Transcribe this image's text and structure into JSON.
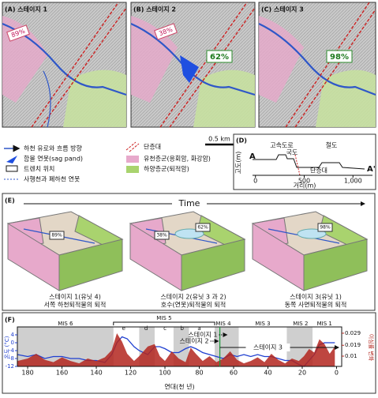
{
  "panels": {
    "a": {
      "label": "(A) 스테이지 1",
      "pct": "89%"
    },
    "b": {
      "label": "(B) 스테이지 2",
      "pct_west": "38%",
      "pct_east": "62%"
    },
    "c": {
      "label": "(C) 스테이지 3",
      "pct": "98%"
    }
  },
  "scale_bar": "0.5 km",
  "legend": {
    "left": [
      "하천 유로와 흐름 방향",
      "함몰 연못(sag pand)",
      "트렌치 위치",
      "사행천과 폐하천 연못"
    ],
    "right": [
      "단층대",
      "유천층군(응회암, 화강암)",
      "하양층군(퇴적암)"
    ]
  },
  "profile": {
    "label": "(D)",
    "y_label": "고도(m)",
    "start": "A",
    "end": "A'",
    "highway": "고속도로",
    "road": "국도",
    "railway": "철도",
    "fault": "단층대",
    "x_label": "거리(m)",
    "xlim": [
      -30,
      1200
    ],
    "xticks": [
      0,
      500,
      {
        "value": 1000,
        "label": "1,000"
      }
    ]
  },
  "evolution": {
    "label": "(E)",
    "time": "Time",
    "blocks": [
      {
        "pct": [
          "89%"
        ],
        "caption": [
          "스테이지 1(유닛 4)",
          "서쪽 하천퇴적물의 퇴적"
        ]
      },
      {
        "pct": [
          "38%",
          "62%"
        ],
        "caption": [
          "스테이지 2(유닛 3 과 2)",
          "호수(연못)퇴적물의 퇴적"
        ]
      },
      {
        "pct": [
          "98%"
        ],
        "caption": [
          "스테이지 3(유닛 1)",
          "동쪽 사면퇴적물의 퇴적"
        ]
      }
    ]
  },
  "chart_data": {
    "type": "line",
    "label": "(F)",
    "x_label": "연대(천 년)",
    "y_label": "온도 (°C)",
    "y2_label": "이심률 변화",
    "xlim": [
      186,
      -3
    ],
    "xticks": [
      180,
      160,
      140,
      120,
      100,
      80,
      60,
      40,
      20,
      0
    ],
    "ylim": [
      -12,
      8
    ],
    "yticks": [
      4,
      0,
      -4,
      -8,
      -12
    ],
    "y2lim": [
      0.0015,
      0.0342
    ],
    "y2ticks": [
      0.029,
      0.019,
      0.01
    ],
    "x": [
      186,
      180,
      175,
      170,
      165,
      160,
      155,
      150,
      145,
      140,
      135,
      131,
      128,
      125,
      122,
      118,
      115,
      110,
      106,
      103,
      100,
      96,
      92,
      88,
      85,
      82,
      78,
      74,
      70,
      66,
      62,
      58,
      54,
      50,
      46,
      42,
      38,
      34,
      30,
      26,
      22,
      19,
      16,
      13,
      10,
      7,
      4,
      1
    ],
    "series": [
      {
        "color": "#1f3fd0",
        "values": [
          -6,
          -7,
          -6,
          -8,
          -7,
          -7,
          -8,
          -8,
          -9,
          -9,
          -10,
          -6,
          0,
          3,
          2,
          -2,
          -4,
          -6,
          -2,
          -2,
          -3,
          -5,
          -5,
          -3,
          -2,
          -3,
          -5,
          -6,
          -7,
          -8,
          -6,
          -7,
          -6,
          -7,
          -6,
          -7,
          -7,
          -8,
          -9,
          -9,
          -11,
          -12,
          -9,
          -6,
          -1,
          0,
          0,
          0
        ]
      },
      {
        "color": "#b3261e",
        "axis": "y2",
        "values": [
          0.006,
          0.008,
          0.012,
          0.007,
          0.005,
          0.009,
          0.006,
          0.004,
          0.008,
          0.006,
          0.009,
          0.015,
          0.029,
          0.022,
          0.012,
          0.006,
          0.01,
          0.018,
          0.02,
          0.01,
          0.006,
          0.014,
          0.008,
          0.005,
          0.017,
          0.012,
          0.006,
          0.01,
          0.005,
          0.008,
          0.014,
          0.007,
          0.004,
          0.006,
          0.009,
          0.005,
          0.012,
          0.007,
          0.004,
          0.008,
          0.006,
          0.01,
          0.016,
          0.013,
          0.024,
          0.02,
          0.012,
          0.018
        ]
      }
    ],
    "shaded_periods": [
      [
        186,
        130
      ],
      [
        115,
        106
      ],
      [
        95,
        86
      ],
      [
        71,
        57
      ],
      [
        29,
        14
      ]
    ],
    "mis_labels": [
      {
        "label": "MIS 6",
        "x": 158
      },
      {
        "label": "MIS 4",
        "x": 66
      },
      {
        "label": "MIS 3",
        "x": 43
      },
      {
        "label": "MIS 2",
        "x": 21
      },
      {
        "label": "MIS 1",
        "x": 7
      }
    ],
    "mis5": {
      "label": "MIS 5",
      "from": 130,
      "to": 71,
      "subs": [
        {
          "label": "e",
          "x": 124
        },
        {
          "label": "d",
          "x": 111
        },
        {
          "label": "c",
          "x": 100
        },
        {
          "label": "b",
          "x": 90
        },
        {
          "label": "a",
          "x": 80
        }
      ]
    },
    "stages": [
      {
        "label": "스테이지 1",
        "x": 63
      },
      {
        "label": "스테이지 2",
        "x": 68
      },
      {
        "label": "스테이지 3",
        "x": 40
      }
    ]
  }
}
